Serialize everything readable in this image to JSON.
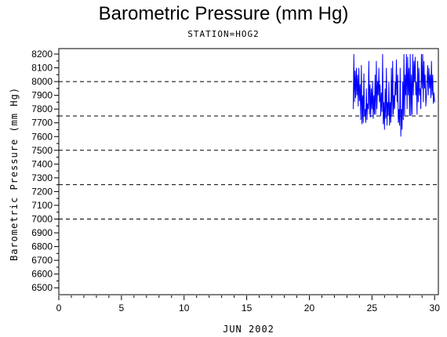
{
  "chart_data": {
    "type": "line",
    "title": "Barometric Pressure (mm Hg)",
    "subtitle": "STATION=HOG2",
    "xlabel": "JUN 2002",
    "ylabel": "Barometric Pressure (mm Hg)",
    "xlim": [
      0,
      30.3
    ],
    "ylim": [
      6450,
      8240
    ],
    "xticks": [
      0,
      5,
      10,
      15,
      20,
      25,
      30
    ],
    "yticks": [
      6500,
      6600,
      6700,
      6800,
      6900,
      7000,
      7100,
      7200,
      7300,
      7400,
      7500,
      7600,
      7700,
      7800,
      7900,
      8000,
      8100,
      8200
    ],
    "reference_lines": [
      8000,
      7750,
      7500,
      7250,
      7000
    ],
    "series_color": "#0000ff",
    "series": [
      {
        "x": [
          23.5,
          23.55,
          23.6,
          23.65,
          23.7,
          23.75,
          23.8,
          23.85,
          23.9,
          23.95,
          24.0,
          24.05,
          24.1,
          24.15,
          24.2,
          24.25,
          24.3,
          24.35,
          24.4,
          24.45,
          24.5,
          24.55,
          24.6,
          24.65,
          24.7,
          24.75,
          24.8,
          24.85,
          24.9,
          24.95,
          25.0,
          25.05,
          25.1,
          25.15,
          25.2,
          25.25,
          25.3,
          25.35,
          25.4,
          25.45,
          25.5,
          25.55,
          25.6,
          25.65,
          25.7,
          25.75,
          25.8,
          25.85,
          25.9,
          25.95,
          26.0,
          26.05,
          26.1,
          26.15,
          26.2,
          26.25,
          26.3,
          26.35,
          26.4,
          26.45,
          26.5,
          26.55,
          26.6,
          26.65,
          26.7,
          26.75,
          26.8,
          26.85,
          26.9,
          26.95,
          27.0,
          27.05,
          27.1,
          27.15,
          27.2,
          27.25,
          27.3,
          27.35,
          27.4,
          27.45,
          27.5,
          27.55,
          27.6,
          27.65,
          27.7,
          27.75,
          27.8,
          27.85,
          27.9,
          27.95,
          28.0,
          28.05,
          28.1,
          28.15,
          28.2,
          28.25,
          28.3,
          28.35,
          28.4,
          28.45,
          28.5,
          28.55,
          28.6,
          28.65,
          28.7,
          28.75,
          28.8,
          28.85,
          28.9,
          28.95,
          29.0,
          29.05,
          29.1,
          29.15,
          29.2,
          29.25,
          29.3,
          29.35,
          29.4,
          29.45,
          29.5,
          29.55,
          29.6,
          29.65,
          29.7,
          29.75,
          29.8,
          29.85,
          29.9,
          29.95,
          30.0
        ],
        "y": [
          7800,
          8200,
          7850,
          8080,
          7880,
          8100,
          7900,
          8050,
          7820,
          8100,
          7860,
          7980,
          7720,
          8120,
          7690,
          7900,
          7700,
          8060,
          7750,
          7800,
          7700,
          7950,
          7720,
          7840,
          7800,
          8150,
          7760,
          7980,
          7740,
          7950,
          7800,
          8000,
          7730,
          7900,
          7760,
          8050,
          7760,
          8150,
          7800,
          8000,
          7900,
          8100,
          7850,
          7980,
          7750,
          7920,
          7780,
          8200,
          7690,
          7850,
          7650,
          7950,
          7730,
          8100,
          7680,
          7850,
          7750,
          8000,
          7680,
          7850,
          7700,
          8100,
          7750,
          8150,
          7760,
          7900,
          7800,
          8000,
          7900,
          8160,
          7850,
          8050,
          7700,
          7800,
          7680,
          8100,
          7600,
          7800,
          7650,
          8000,
          7720,
          8200,
          7750,
          8050,
          7900,
          8200,
          7800,
          8180,
          7900,
          8100,
          7750,
          8200,
          7750,
          8050,
          7760,
          8200,
          7900,
          8150,
          8000,
          8180,
          7900,
          8000,
          7760,
          8150,
          7850,
          8100,
          7900,
          7950,
          7800,
          8200,
          7950,
          8200,
          7850,
          8150,
          7950,
          8050,
          7820,
          7900,
          8000,
          8120,
          7900,
          8100,
          7950,
          8050,
          7880,
          8150,
          7900,
          8050,
          7840,
          7920,
          7850
        ]
      }
    ]
  }
}
